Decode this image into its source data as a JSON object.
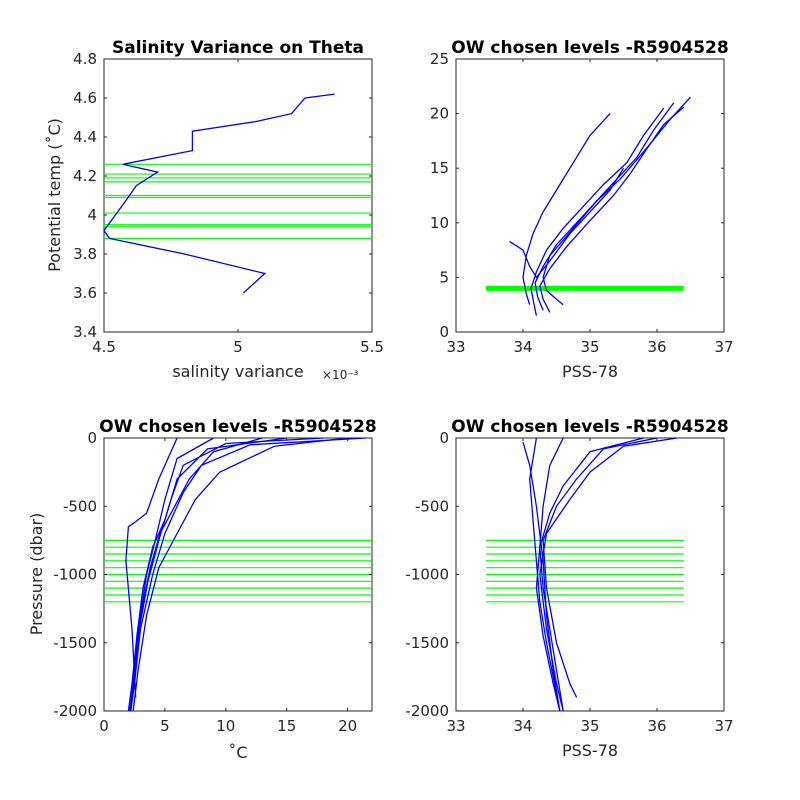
{
  "colors": {
    "profile": "#0000ff",
    "levels": "#00ff00",
    "axis": "#262626"
  },
  "chart_data": [
    {
      "type": "line",
      "title": "Salinity Variance on Theta",
      "xlabel": "salinity variance",
      "x_exponent": "×10⁻³",
      "ylabel": "Potential temp (˚C)",
      "xlim": [
        4.5,
        5.5
      ],
      "ylim": [
        3.4,
        4.8
      ],
      "xticks": [
        4.5,
        5,
        5.5
      ],
      "xtick_labels": [
        "4.5",
        "5",
        "5.5"
      ],
      "yticks": [
        3.4,
        3.6,
        3.8,
        4,
        4.2,
        4.4,
        4.6,
        4.8
      ],
      "ytick_labels": [
        "3.4",
        "3.6",
        "3.8",
        "4",
        "4.2",
        "4.4",
        "4.6",
        "4.8"
      ],
      "series": [
        {
          "x": [
            5.02,
            5.1,
            4.8,
            4.52,
            4.5,
            4.58,
            4.62,
            4.7,
            4.57,
            4.83,
            4.83,
            5.07,
            5.2,
            5.25,
            5.36
          ],
          "y": [
            3.6,
            3.7,
            3.8,
            3.88,
            3.92,
            4.07,
            4.15,
            4.22,
            4.26,
            4.33,
            4.43,
            4.48,
            4.52,
            4.6,
            4.62
          ]
        }
      ],
      "level_lines": [
        3.88,
        3.94,
        3.95,
        4.01,
        4.09,
        4.1,
        4.17,
        4.19,
        4.21,
        4.26
      ]
    },
    {
      "type": "line",
      "title": "OW chosen levels -R5904528",
      "xlabel": "PSS-78",
      "ylabel": "",
      "xlim": [
        33,
        37
      ],
      "ylim": [
        0,
        25
      ],
      "xticks": [
        33,
        34,
        35,
        36,
        37
      ],
      "xtick_labels": [
        "33",
        "34",
        "35",
        "36",
        "37"
      ],
      "yticks": [
        0,
        5,
        10,
        15,
        20,
        25
      ],
      "ytick_labels": [
        "0",
        "5",
        "10",
        "15",
        "20",
        "25"
      ],
      "series": [
        {
          "x": [
            34.2,
            34.15,
            34.12,
            34.2,
            34.35,
            34.6,
            34.9,
            35.2,
            35.55,
            35.8,
            36.1
          ],
          "y": [
            1.5,
            3.0,
            4.0,
            5.5,
            7.5,
            9.5,
            11.5,
            13.5,
            15.5,
            18.0,
            20.5
          ]
        },
        {
          "x": [
            34.3,
            34.22,
            34.18,
            34.3,
            34.5,
            34.8,
            35.1,
            35.4,
            35.7,
            35.95,
            36.25
          ],
          "y": [
            2.0,
            3.2,
            4.5,
            6.0,
            8.0,
            10.0,
            12.0,
            14.0,
            16.0,
            18.5,
            21.0
          ]
        },
        {
          "x": [
            34.1,
            34.05,
            34.0,
            34.05,
            34.15,
            34.3,
            34.45,
            34.6,
            34.8,
            35.0,
            35.3
          ],
          "y": [
            2.5,
            3.5,
            5.0,
            7.0,
            9.0,
            11.0,
            12.5,
            14.0,
            16.0,
            18.0,
            20.0
          ]
        },
        {
          "x": [
            34.4,
            34.3,
            34.25,
            34.4,
            34.65,
            35.0,
            35.35,
            35.6,
            35.85,
            36.1,
            36.4
          ],
          "y": [
            1.8,
            3.0,
            4.2,
            5.8,
            7.8,
            10.2,
            12.5,
            14.5,
            16.8,
            19.0,
            20.6
          ]
        },
        {
          "x": [
            33.8,
            34.0,
            34.1,
            34.2,
            34.4,
            34.7,
            35.0,
            35.3,
            35.5
          ],
          "y": [
            8.3,
            7.5,
            6.0,
            5.0,
            6.5,
            9.0,
            11.0,
            13.0,
            15.0
          ]
        },
        {
          "x": [
            34.6,
            34.5,
            34.35,
            34.3,
            34.4,
            34.75,
            35.1,
            35.45,
            35.8,
            36.2,
            36.5
          ],
          "y": [
            2.5,
            3.0,
            3.8,
            5.0,
            7.0,
            9.5,
            12.0,
            14.0,
            16.5,
            19.5,
            21.5
          ]
        }
      ],
      "level_lines": [
        4.0
      ]
    },
    {
      "type": "line",
      "title": "OW chosen levels -R5904528",
      "xlabel": "˚C",
      "ylabel": "Pressure (dbar)",
      "xlim": [
        0,
        22
      ],
      "ylim": [
        -2000,
        0
      ],
      "xticks": [
        0,
        5,
        10,
        15,
        20
      ],
      "xtick_labels": [
        "0",
        "5",
        "10",
        "15",
        "20"
      ],
      "yticks": [
        -2000,
        -1500,
        -1000,
        -500,
        0
      ],
      "ytick_labels": [
        "-2000",
        "-1500",
        "-1000",
        "-500",
        "0"
      ],
      "series": [
        {
          "x": [
            21.5,
            12.0,
            8.0,
            6.5,
            5.0,
            4.0,
            3.0,
            2.5,
            2.2
          ],
          "y": [
            0,
            -50,
            -200,
            -400,
            -700,
            -1000,
            -1400,
            -1800,
            -2000
          ]
        },
        {
          "x": [
            20.0,
            14.0,
            9.5,
            7.5,
            6.0,
            4.5,
            3.5,
            2.8,
            2.4
          ],
          "y": [
            0,
            -60,
            -250,
            -450,
            -700,
            -950,
            -1300,
            -1700,
            -2000
          ]
        },
        {
          "x": [
            18.0,
            10.0,
            6.5,
            5.5,
            4.5,
            3.6,
            2.9,
            2.4,
            2.1
          ],
          "y": [
            0,
            -40,
            -200,
            -450,
            -750,
            -1050,
            -1400,
            -1800,
            -2000
          ]
        },
        {
          "x": [
            15.0,
            8.5,
            6.0,
            5.0,
            4.0,
            3.2,
            2.7,
            2.3,
            2.0
          ],
          "y": [
            0,
            -80,
            -300,
            -600,
            -800,
            -1100,
            -1450,
            -1800,
            -2000
          ]
        },
        {
          "x": [
            9.0,
            6.0,
            5.0,
            4.2,
            3.5,
            2.9,
            2.5,
            2.2
          ],
          "y": [
            0,
            -150,
            -450,
            -750,
            -1000,
            -1350,
            -1700,
            -2000
          ]
        },
        {
          "x": [
            6.0,
            4.5,
            3.5,
            2.5,
            2.0,
            1.8,
            2.3,
            2.6
          ],
          "y": [
            0,
            -300,
            -550,
            -620,
            -650,
            -900,
            -1400,
            -1900
          ]
        },
        {
          "x": [
            13.0,
            9.0,
            7.0,
            5.8,
            4.6,
            3.8,
            3.0,
            2.6,
            2.3
          ],
          "y": [
            0,
            -100,
            -300,
            -500,
            -700,
            -950,
            -1300,
            -1650,
            -1900
          ]
        }
      ],
      "level_lines": [
        -750,
        -800,
        -850,
        -900,
        -950,
        -1000,
        -1050,
        -1100,
        -1150,
        -1200
      ]
    },
    {
      "type": "line",
      "title": "OW chosen levels -R5904528",
      "xlabel": "PSS-78",
      "ylabel": "",
      "xlim": [
        33,
        37
      ],
      "ylim": [
        -2000,
        0
      ],
      "xticks": [
        33,
        34,
        35,
        36,
        37
      ],
      "xtick_labels": [
        "33",
        "34",
        "35",
        "36",
        "37"
      ],
      "yticks": [
        -2000,
        -1500,
        -1000,
        -500,
        0
      ],
      "ytick_labels": [
        "-2000",
        "-1500",
        "-1000",
        "-500",
        "0"
      ],
      "series": [
        {
          "x": [
            36.3,
            35.5,
            35.0,
            34.7,
            34.35,
            34.25,
            34.35,
            34.5,
            34.6
          ],
          "y": [
            0,
            -60,
            -250,
            -450,
            -700,
            -1000,
            -1400,
            -1800,
            -2000
          ]
        },
        {
          "x": [
            35.8,
            35.0,
            34.6,
            34.4,
            34.25,
            34.2,
            34.3,
            34.45,
            34.55
          ],
          "y": [
            0,
            -100,
            -350,
            -550,
            -800,
            -1100,
            -1450,
            -1800,
            -2000
          ]
        },
        {
          "x": [
            34.2,
            34.1,
            34.15,
            34.2,
            34.25,
            34.35,
            34.45,
            34.55
          ],
          "y": [
            0,
            -300,
            -600,
            -900,
            -1200,
            -1500,
            -1750,
            -2000
          ]
        },
        {
          "x": [
            34.6,
            34.4,
            34.3,
            34.25,
            34.3,
            34.4,
            34.5,
            34.6
          ],
          "y": [
            0,
            -200,
            -500,
            -800,
            -1100,
            -1400,
            -1700,
            -2000
          ]
        },
        {
          "x": [
            36.0,
            35.2,
            34.8,
            34.5,
            34.3,
            34.35,
            34.5,
            34.7,
            34.8
          ],
          "y": [
            0,
            -80,
            -300,
            -500,
            -750,
            -1100,
            -1500,
            -1800,
            -1900
          ]
        },
        {
          "x": [
            34.0,
            34.1,
            34.2,
            34.3,
            34.35,
            34.45,
            34.55
          ],
          "y": [
            -30,
            -200,
            -500,
            -900,
            -1300,
            -1700,
            -2000
          ]
        }
      ],
      "level_lines": [
        -750,
        -800,
        -850,
        -900,
        -950,
        -1000,
        -1050,
        -1100,
        -1150,
        -1200
      ]
    }
  ]
}
